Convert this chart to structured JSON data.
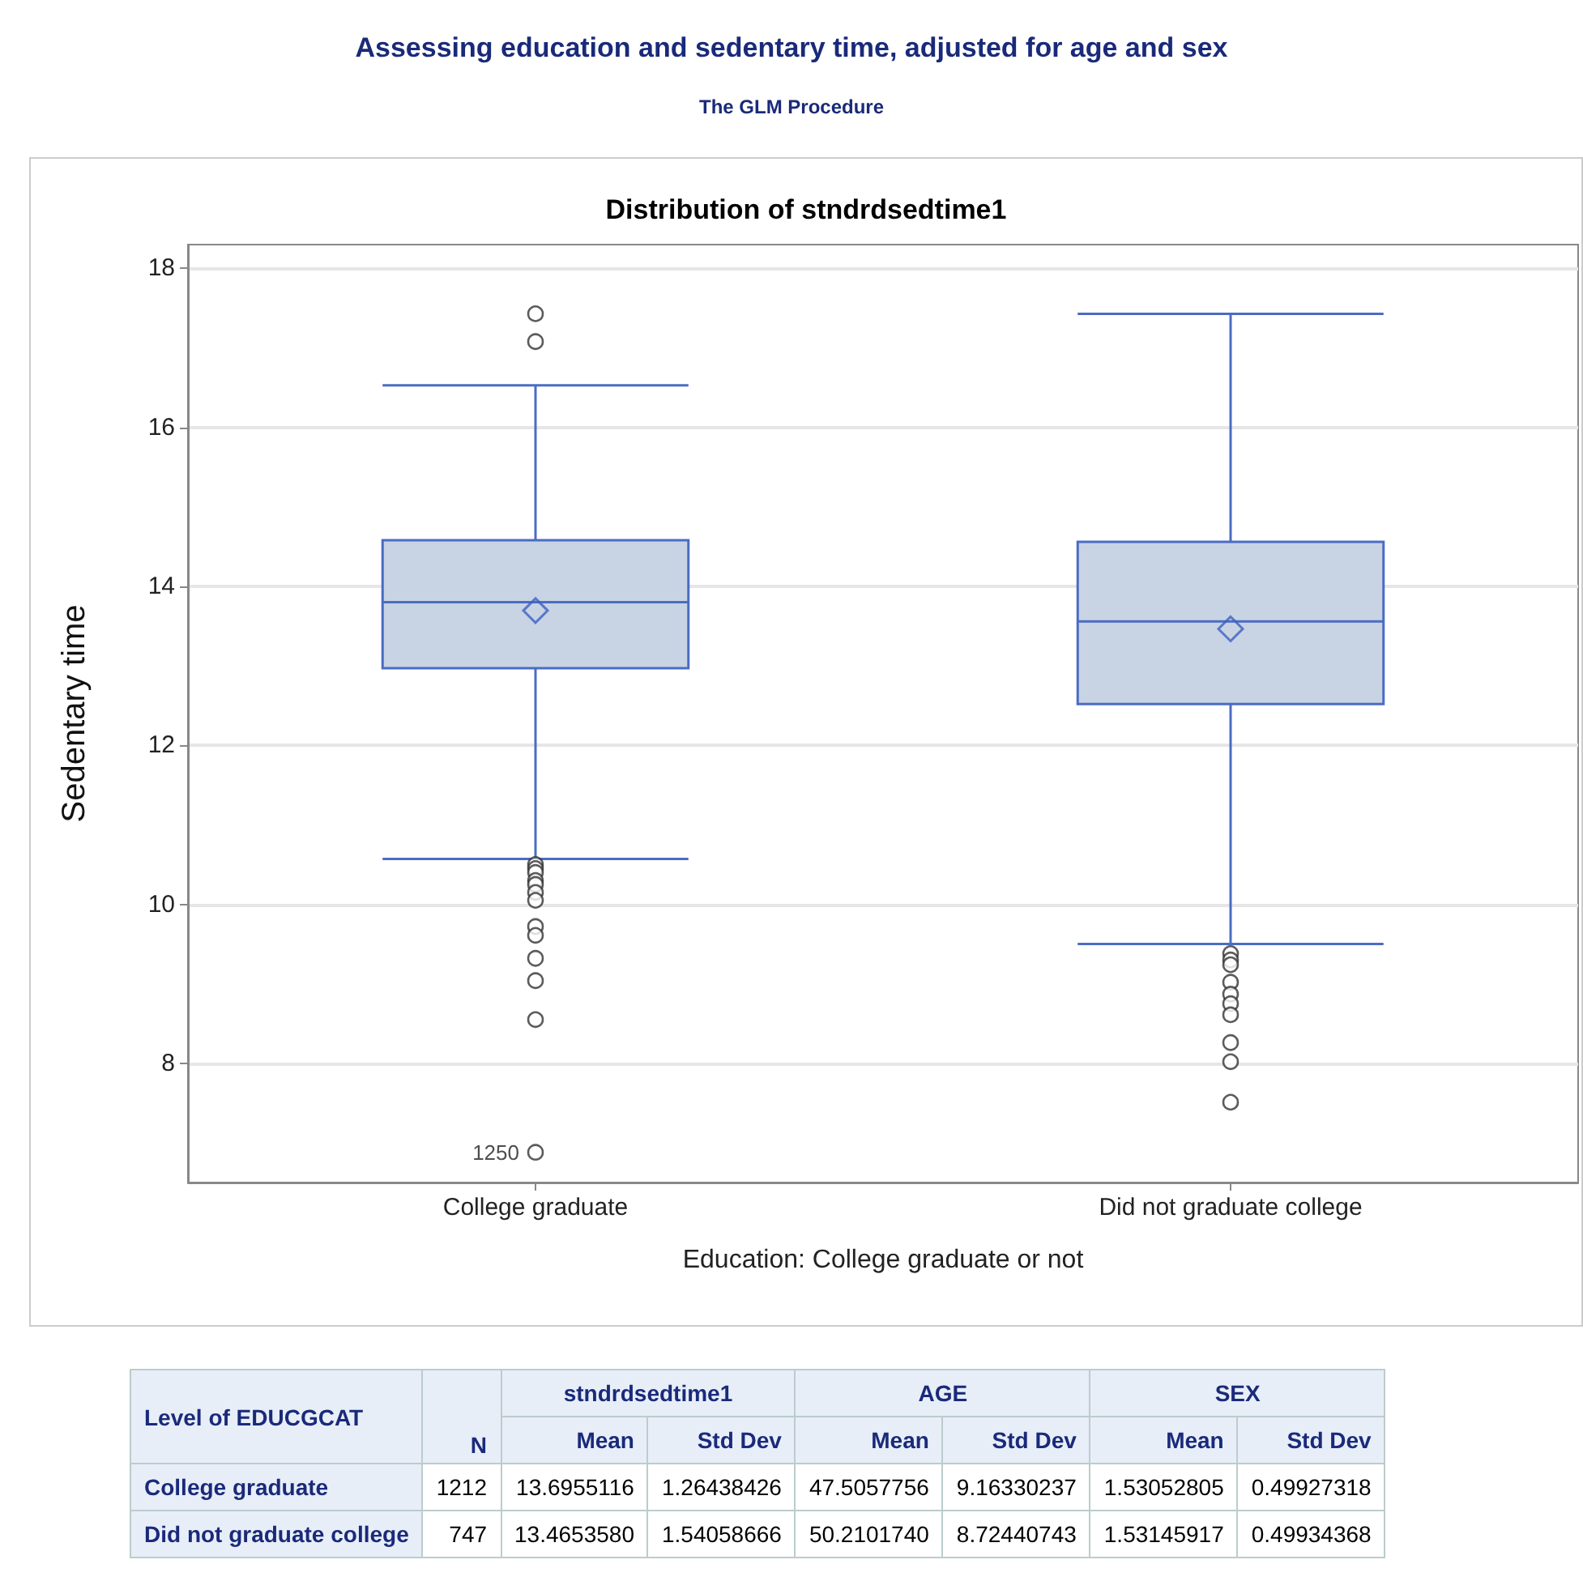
{
  "chart_data": [
    {
      "type": "box",
      "title": "Assessing education and sedentary time, adjusted for age and sex",
      "subtitle": "The GLM Procedure",
      "annotations": [
        "Distribution of stndrdsedtime1",
        "1250"
      ],
      "xlabel": "Education: College graduate or not",
      "ylabel": "Sedentary time",
      "categories": [
        "College graduate",
        "Did not graduate college"
      ],
      "color": "#c8d4e4",
      "boxes": [
        {
          "low": 10.57,
          "q1": 12.97,
          "median": 13.8,
          "q3": 14.58,
          "high": 16.53,
          "mean": 13.6955116,
          "outliers": [
            17.43,
            17.08,
            10.5,
            10.45,
            10.4,
            10.3,
            10.25,
            10.15,
            10.05,
            9.72,
            9.61,
            9.32,
            9.04,
            8.55,
            6.88
          ]
        },
        {
          "low": 9.5,
          "q1": 12.52,
          "median": 13.56,
          "q3": 14.56,
          "high": 17.43,
          "mean": 13.465358,
          "outliers": [
            9.38,
            9.3,
            9.24,
            9.02,
            8.87,
            8.75,
            8.61,
            8.26,
            8.02,
            7.51
          ]
        }
      ],
      "ylim": [
        6.5,
        18.3
      ],
      "yticks": [
        8,
        10,
        12,
        14,
        16,
        18
      ],
      "grid": "y"
    },
    {
      "type": "other",
      "annotations": [
        "Level of EDUCGCAT",
        "stndrdsedtime1",
        "AGE",
        "SEX",
        "1212",
        "13.6955116",
        "1.26438426",
        "47.5057756",
        "9.16330237",
        "1.53052805",
        "0.49927318",
        "747",
        "13.4653580",
        "1.54058666",
        "50.2101740",
        "8.72440743",
        "1.53145917",
        "0.49934368"
      ],
      "categories": [
        "N",
        "Mean",
        "Std Dev",
        "Mean",
        "Std Dev",
        "Mean",
        "Std Dev"
      ],
      "y_categories": [
        "College graduate",
        "Did not graduate college"
      ]
    }
  ]
}
